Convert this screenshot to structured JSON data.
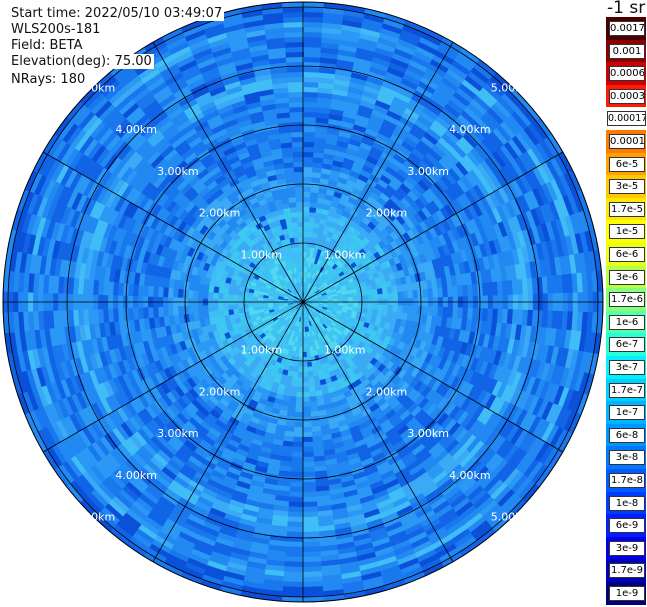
{
  "info": {
    "start_time": "Start time: 2022/05/10 03:49:07",
    "instrument": "WLS200s-181",
    "field": "Field: BETA",
    "elevation": "Elevation(deg): 75.00",
    "nrays": "NRays: 180"
  },
  "units": "-1 sr",
  "range_rings": {
    "labels": [
      "1.00km",
      "2.00km",
      "3.00km",
      "4.00km",
      "5.00km"
    ]
  },
  "legend": {
    "labels": [
      "0.0017",
      "0.001",
      "0.0006",
      "0.0003",
      "0.00017",
      "0.0001",
      "6e-5",
      "3e-5",
      "1.7e-5",
      "1e-5",
      "6e-6",
      "3e-6",
      "1.7e-6",
      "1e-6",
      "6e-7",
      "3e-7",
      "1.7e-7",
      "1e-7",
      "6e-8",
      "3e-8",
      "1.7e-8",
      "1e-8",
      "6e-9",
      "3e-9",
      "1.7e-9",
      "1e-9"
    ],
    "colors": [
      "#4a0000",
      "#8b0000",
      "#cc0000",
      "#ff1a00",
      "#ffffff",
      "#ff7a00",
      "#ffa200",
      "#ffc800",
      "#ffe800",
      "#ffff00",
      "#e8ff18",
      "#b8ff48",
      "#88ff78",
      "#58ffa8",
      "#28ffd8",
      "#00f0ff",
      "#00d0ff",
      "#00b4ff",
      "#0096ff",
      "#0078ff",
      "#005aff",
      "#003cff",
      "#001eff",
      "#0000ee",
      "#0000b8",
      "#00007a"
    ]
  }
}
